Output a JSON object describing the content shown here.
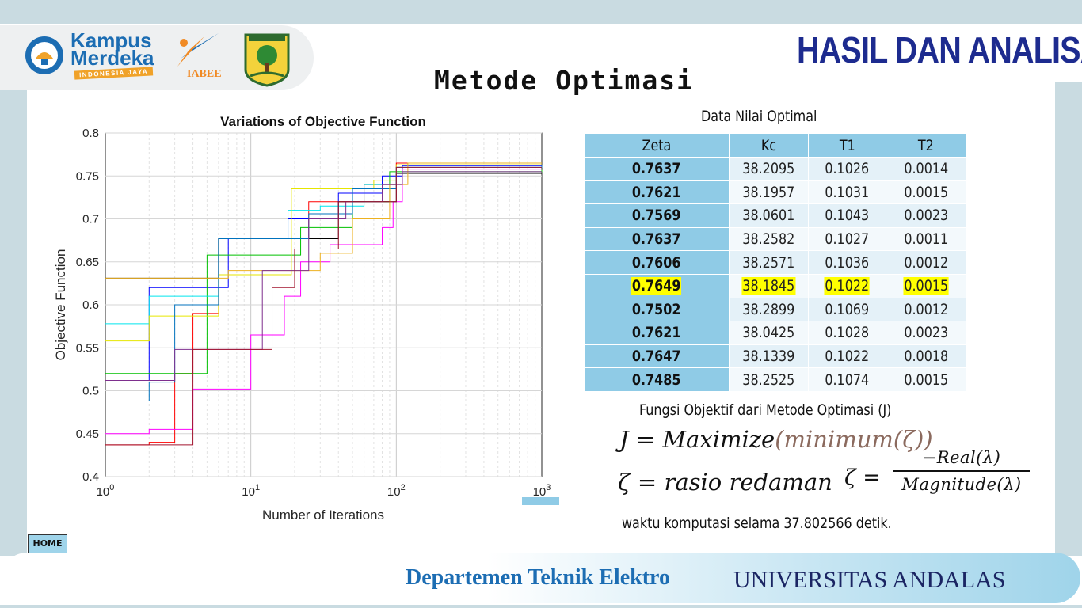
{
  "header": {
    "title": "HASIL DAN ANALISA",
    "subtitle": "Metode Optimasi",
    "logos": {
      "kampus_line1": "Kampus",
      "kampus_line2": "Merdeka",
      "kampus_tag": "INDONESIA JAYA",
      "iabee": "IABEE",
      "seal_icon": "university-seal-icon"
    }
  },
  "chart_data": {
    "type": "line",
    "title": "Variations of Objective Function",
    "xlabel": "Number of Iterations",
    "ylabel": "Objective Function",
    "x_scale": "log",
    "xlim": [
      1,
      1000
    ],
    "ylim": [
      0.4,
      0.8
    ],
    "grid": true,
    "x_ticks": [
      "10",
      "10",
      "10",
      "10"
    ],
    "x_tick_exponents": [
      "0",
      "1",
      "2",
      "3"
    ],
    "y_ticks": [
      "0.4",
      "0.45",
      "0.5",
      "0.55",
      "0.6",
      "0.65",
      "0.7",
      "0.75",
      "0.8"
    ],
    "series": [
      {
        "color": "#ff0000",
        "points": [
          [
            1,
            0.437
          ],
          [
            2,
            0.44
          ],
          [
            3,
            0.52
          ],
          [
            4,
            0.59
          ],
          [
            5,
            0.59
          ],
          [
            6,
            0.677
          ],
          [
            20,
            0.677
          ],
          [
            25,
            0.72
          ],
          [
            60,
            0.74
          ],
          [
            100,
            0.765
          ],
          [
            1000,
            0.765
          ]
        ]
      },
      {
        "color": "#0000ff",
        "points": [
          [
            1,
            0.512
          ],
          [
            2,
            0.62
          ],
          [
            6,
            0.62
          ],
          [
            7,
            0.677
          ],
          [
            16,
            0.677
          ],
          [
            18,
            0.7
          ],
          [
            40,
            0.73
          ],
          [
            80,
            0.75
          ],
          [
            110,
            0.762
          ],
          [
            1000,
            0.762
          ]
        ]
      },
      {
        "color": "#00c000",
        "points": [
          [
            1,
            0.52
          ],
          [
            3,
            0.52
          ],
          [
            5,
            0.658
          ],
          [
            18,
            0.658
          ],
          [
            22,
            0.69
          ],
          [
            50,
            0.72
          ],
          [
            90,
            0.755
          ],
          [
            1000,
            0.757
          ]
        ]
      },
      {
        "color": "#ff00ff",
        "points": [
          [
            1,
            0.45
          ],
          [
            2,
            0.455
          ],
          [
            4,
            0.502
          ],
          [
            8,
            0.502
          ],
          [
            10,
            0.565
          ],
          [
            17,
            0.61
          ],
          [
            22,
            0.65
          ],
          [
            35,
            0.67
          ],
          [
            80,
            0.69
          ],
          [
            95,
            0.72
          ],
          [
            110,
            0.758
          ],
          [
            1000,
            0.758
          ]
        ]
      },
      {
        "color": "#00e5ee",
        "points": [
          [
            1,
            0.578
          ],
          [
            2,
            0.61
          ],
          [
            4,
            0.61
          ],
          [
            6,
            0.677
          ],
          [
            14,
            0.677
          ],
          [
            18,
            0.71
          ],
          [
            30,
            0.715
          ],
          [
            60,
            0.74
          ],
          [
            100,
            0.76
          ],
          [
            1000,
            0.76
          ]
        ]
      },
      {
        "color": "#e6e600",
        "points": [
          [
            1,
            0.558
          ],
          [
            2,
            0.587
          ],
          [
            4,
            0.587
          ],
          [
            6,
            0.635
          ],
          [
            19,
            0.735
          ],
          [
            45,
            0.735
          ],
          [
            70,
            0.745
          ],
          [
            100,
            0.763
          ],
          [
            1000,
            0.763
          ]
        ]
      },
      {
        "color": "#000000",
        "points": [
          [
            1,
            0.631
          ],
          [
            3,
            0.631
          ],
          [
            6,
            0.677
          ],
          [
            20,
            0.677
          ],
          [
            40,
            0.72
          ],
          [
            100,
            0.753
          ],
          [
            1000,
            0.753
          ]
        ]
      },
      {
        "color": "#0072bd",
        "points": [
          [
            1,
            0.488
          ],
          [
            2,
            0.51
          ],
          [
            3,
            0.6
          ],
          [
            5,
            0.6
          ],
          [
            6,
            0.677
          ],
          [
            18,
            0.677
          ],
          [
            25,
            0.706
          ],
          [
            50,
            0.735
          ],
          [
            100,
            0.76
          ],
          [
            1000,
            0.762
          ]
        ]
      },
      {
        "color": "#edb120",
        "points": [
          [
            1,
            0.631
          ],
          [
            6,
            0.631
          ],
          [
            7,
            0.64
          ],
          [
            20,
            0.64
          ],
          [
            30,
            0.66
          ],
          [
            50,
            0.7
          ],
          [
            90,
            0.74
          ],
          [
            120,
            0.765
          ],
          [
            1000,
            0.765
          ]
        ]
      },
      {
        "color": "#7e2f8e",
        "points": [
          [
            1,
            0.512
          ],
          [
            3,
            0.548
          ],
          [
            8,
            0.548
          ],
          [
            12,
            0.64
          ],
          [
            25,
            0.7
          ],
          [
            45,
            0.72
          ],
          [
            80,
            0.74
          ],
          [
            110,
            0.755
          ],
          [
            1000,
            0.755
          ]
        ]
      },
      {
        "color": "#a2142f",
        "points": [
          [
            1,
            0.437
          ],
          [
            4,
            0.548
          ],
          [
            10,
            0.548
          ],
          [
            14,
            0.62
          ],
          [
            20,
            0.665
          ],
          [
            40,
            0.72
          ],
          [
            100,
            0.76
          ],
          [
            1000,
            0.76
          ]
        ]
      }
    ]
  },
  "table": {
    "title": "Data Nilai Optimal",
    "headers": [
      "Zeta",
      "Kc",
      "T1",
      "T2"
    ],
    "rows": [
      [
        "0.7637",
        "38.2095",
        "0.1026",
        "0.0014"
      ],
      [
        "0.7621",
        "38.1957",
        "0.1031",
        "0.0015"
      ],
      [
        "0.7569",
        "38.0601",
        "0.1043",
        "0.0023"
      ],
      [
        "0.7637",
        "38.2582",
        "0.1027",
        "0.0011"
      ],
      [
        "0.7606",
        "38.2571",
        "0.1036",
        "0.0012"
      ],
      [
        "0.7649",
        "38.1845",
        "0.1022",
        "0.0015"
      ],
      [
        "0.7502",
        "38.2899",
        "0.1069",
        "0.0012"
      ],
      [
        "0.7621",
        "38.0425",
        "0.1028",
        "0.0023"
      ],
      [
        "0.7647",
        "38.1339",
        "0.1022",
        "0.0018"
      ],
      [
        "0.7485",
        "38.2525",
        "0.1074",
        "0.0015"
      ]
    ],
    "highlight_row": 5,
    "highlight_color": "#ffff00"
  },
  "formula": {
    "caption": "Fungsi Objektif dari Metode Optimasi (J)",
    "eq1_left": "J = Maximize",
    "eq1_right": "(minimum(ζ))",
    "eq2": "ζ =  rasio redaman",
    "eq3_left": "ζ  =",
    "eq3_num": "−Real(λ)",
    "eq3_den": "Magnitude(λ)",
    "waktu": "waktu komputasi selama 37.802566 detik."
  },
  "nav": {
    "home_label": "HOME"
  },
  "footer": {
    "department": "Departemen Teknik Elektro",
    "university": "UNIVERSITAS ANDALAS"
  }
}
